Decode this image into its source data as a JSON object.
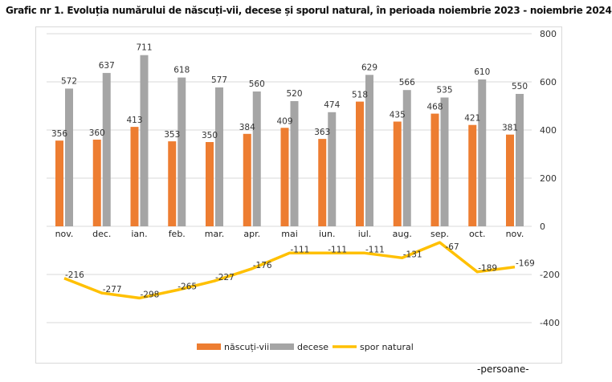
{
  "title": "Grafic nr 1. Evoluția numărului de născuți-vii,  decese și sporul natural, în perioada  noiembrie 2023 - noiembrie 2024",
  "unit_label": "-persoane-",
  "chart_data": {
    "type": "bar+line",
    "title": "Grafic nr 1. Evoluția numărului de născuți-vii,  decese și sporul natural, în perioada  noiembrie 2023 - noiembrie 2024",
    "categories": [
      "nov.",
      "dec.",
      "ian.",
      "feb.",
      "mar.",
      "apr.",
      "mai",
      "iun.",
      "iul.",
      "aug.",
      "sep.",
      "oct.",
      "nov."
    ],
    "series": [
      {
        "name": "născuți-vii",
        "type": "bar",
        "color": "#ed7d31",
        "values": [
          356,
          360,
          413,
          353,
          350,
          384,
          409,
          363,
          518,
          435,
          468,
          421,
          381
        ]
      },
      {
        "name": "decese",
        "type": "bar",
        "color": "#a5a5a5",
        "values": [
          572,
          637,
          711,
          618,
          577,
          560,
          520,
          474,
          629,
          566,
          535,
          610,
          550
        ]
      },
      {
        "name": "spor natural",
        "type": "line",
        "color": "#ffc000",
        "values": [
          -216,
          -277,
          -298,
          -265,
          -227,
          -176,
          -111,
          -111,
          -111,
          -131,
          -67,
          -189,
          -169
        ]
      }
    ],
    "yaxis": {
      "position": "right",
      "min": -400,
      "max": 800,
      "ticks": [
        800,
        600,
        400,
        200,
        0,
        -200,
        -400
      ]
    },
    "grid": true,
    "legend": "bottom"
  }
}
